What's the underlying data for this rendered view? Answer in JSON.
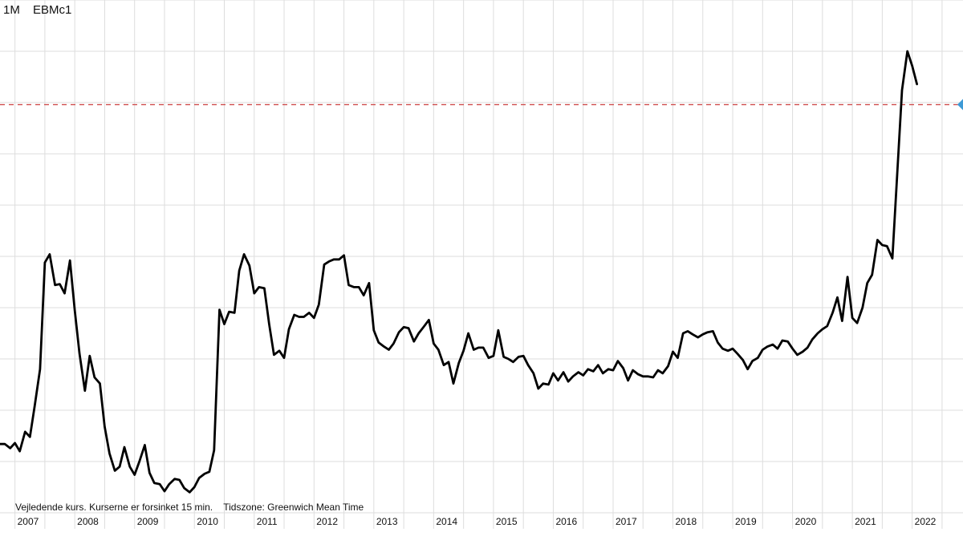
{
  "header": {
    "interval": "1M",
    "symbol": "EBMc1"
  },
  "footnote": "Vejledende kurs. Kurserne er forsinket 15 min.    Tidszone: Greenwich Mean Time",
  "colors": {
    "line": "#000000",
    "grid": "#dddddd",
    "reference_line": "#d05050",
    "marker": "#3d9ad6",
    "text": "#111111"
  },
  "chart_data": {
    "type": "line",
    "title": "",
    "xlabel": "",
    "ylabel": "",
    "x_tick_labels": [
      "2007",
      "2008",
      "2009",
      "2010",
      "2011",
      "2012",
      "2013",
      "2014",
      "2015",
      "2016",
      "2017",
      "2018",
      "2019",
      "2020",
      "2021",
      "2022"
    ],
    "y_tick_labels": [],
    "grid": true,
    "reference_line": {
      "style": "dashed",
      "value": 39.8
    },
    "right_marker": "triangle",
    "xlim": [
      2006.75,
      2022.85
    ],
    "ylim": [
      0,
      50
    ],
    "series": [
      {
        "values": [
          [
            2006.75,
            6.7
          ],
          [
            2006.83,
            6.7
          ],
          [
            2006.92,
            6.3
          ],
          [
            2007.0,
            6.8
          ],
          [
            2007.08,
            6.0
          ],
          [
            2007.17,
            7.9
          ],
          [
            2007.25,
            7.4
          ],
          [
            2007.33,
            10.4
          ],
          [
            2007.42,
            14.0
          ],
          [
            2007.5,
            24.4
          ],
          [
            2007.58,
            25.2
          ],
          [
            2007.67,
            22.2
          ],
          [
            2007.75,
            22.3
          ],
          [
            2007.83,
            21.4
          ],
          [
            2007.92,
            24.6
          ],
          [
            2008.0,
            19.7
          ],
          [
            2008.08,
            15.5
          ],
          [
            2008.17,
            11.9
          ],
          [
            2008.25,
            15.3
          ],
          [
            2008.33,
            13.2
          ],
          [
            2008.42,
            12.6
          ],
          [
            2008.5,
            8.4
          ],
          [
            2008.58,
            5.8
          ],
          [
            2008.67,
            4.1
          ],
          [
            2008.75,
            4.5
          ],
          [
            2008.83,
            6.4
          ],
          [
            2008.92,
            4.5
          ],
          [
            2009.0,
            3.7
          ],
          [
            2009.08,
            5.0
          ],
          [
            2009.17,
            6.6
          ],
          [
            2009.25,
            3.9
          ],
          [
            2009.33,
            2.9
          ],
          [
            2009.42,
            2.8
          ],
          [
            2009.5,
            2.1
          ],
          [
            2009.58,
            2.8
          ],
          [
            2009.67,
            3.3
          ],
          [
            2009.75,
            3.2
          ],
          [
            2009.83,
            2.4
          ],
          [
            2009.92,
            2.0
          ],
          [
            2010.0,
            2.5
          ],
          [
            2010.08,
            3.4
          ],
          [
            2010.17,
            3.8
          ],
          [
            2010.25,
            4.0
          ],
          [
            2010.33,
            6.1
          ],
          [
            2010.42,
            19.8
          ],
          [
            2010.5,
            18.4
          ],
          [
            2010.58,
            19.6
          ],
          [
            2010.67,
            19.5
          ],
          [
            2010.75,
            23.6
          ],
          [
            2010.83,
            25.2
          ],
          [
            2010.92,
            24.1
          ],
          [
            2011.0,
            21.4
          ],
          [
            2011.08,
            22.0
          ],
          [
            2011.17,
            21.9
          ],
          [
            2011.25,
            18.4
          ],
          [
            2011.33,
            15.4
          ],
          [
            2011.42,
            15.8
          ],
          [
            2011.5,
            15.1
          ],
          [
            2011.58,
            17.9
          ],
          [
            2011.67,
            19.3
          ],
          [
            2011.75,
            19.1
          ],
          [
            2011.83,
            19.1
          ],
          [
            2011.92,
            19.5
          ],
          [
            2012.0,
            19.0
          ],
          [
            2012.08,
            20.3
          ],
          [
            2012.17,
            24.2
          ],
          [
            2012.25,
            24.5
          ],
          [
            2012.33,
            24.7
          ],
          [
            2012.42,
            24.7
          ],
          [
            2012.5,
            25.1
          ],
          [
            2012.58,
            22.2
          ],
          [
            2012.67,
            22.0
          ],
          [
            2012.75,
            22.0
          ],
          [
            2012.83,
            21.2
          ],
          [
            2012.92,
            22.4
          ],
          [
            2013.0,
            17.8
          ],
          [
            2013.08,
            16.6
          ],
          [
            2013.17,
            16.2
          ],
          [
            2013.25,
            15.9
          ],
          [
            2013.33,
            16.5
          ],
          [
            2013.42,
            17.6
          ],
          [
            2013.5,
            18.1
          ],
          [
            2013.58,
            18.0
          ],
          [
            2013.67,
            16.7
          ],
          [
            2013.75,
            17.5
          ],
          [
            2013.83,
            18.1
          ],
          [
            2013.92,
            18.8
          ],
          [
            2014.0,
            16.5
          ],
          [
            2014.08,
            15.9
          ],
          [
            2014.17,
            14.4
          ],
          [
            2014.25,
            14.7
          ],
          [
            2014.33,
            12.6
          ],
          [
            2014.42,
            14.6
          ],
          [
            2014.5,
            15.8
          ],
          [
            2014.58,
            17.5
          ],
          [
            2014.67,
            15.9
          ],
          [
            2014.75,
            16.1
          ],
          [
            2014.83,
            16.1
          ],
          [
            2014.92,
            15.1
          ],
          [
            2015.0,
            15.3
          ],
          [
            2015.08,
            17.8
          ],
          [
            2015.17,
            15.2
          ],
          [
            2015.25,
            15.0
          ],
          [
            2015.33,
            14.7
          ],
          [
            2015.42,
            15.2
          ],
          [
            2015.5,
            15.3
          ],
          [
            2015.58,
            14.4
          ],
          [
            2015.67,
            13.6
          ],
          [
            2015.75,
            12.1
          ],
          [
            2015.83,
            12.6
          ],
          [
            2015.92,
            12.5
          ],
          [
            2016.0,
            13.6
          ],
          [
            2016.08,
            12.9
          ],
          [
            2016.17,
            13.7
          ],
          [
            2016.25,
            12.8
          ],
          [
            2016.33,
            13.3
          ],
          [
            2016.42,
            13.7
          ],
          [
            2016.5,
            13.4
          ],
          [
            2016.58,
            14.0
          ],
          [
            2016.67,
            13.8
          ],
          [
            2016.75,
            14.4
          ],
          [
            2016.83,
            13.6
          ],
          [
            2016.92,
            14.0
          ],
          [
            2017.0,
            13.9
          ],
          [
            2017.08,
            14.8
          ],
          [
            2017.17,
            14.1
          ],
          [
            2017.25,
            12.9
          ],
          [
            2017.33,
            13.9
          ],
          [
            2017.42,
            13.5
          ],
          [
            2017.5,
            13.3
          ],
          [
            2017.58,
            13.3
          ],
          [
            2017.67,
            13.2
          ],
          [
            2017.75,
            13.9
          ],
          [
            2017.83,
            13.6
          ],
          [
            2017.92,
            14.3
          ],
          [
            2018.0,
            15.7
          ],
          [
            2018.08,
            15.1
          ],
          [
            2018.17,
            17.5
          ],
          [
            2018.25,
            17.7
          ],
          [
            2018.33,
            17.4
          ],
          [
            2018.42,
            17.1
          ],
          [
            2018.5,
            17.4
          ],
          [
            2018.58,
            17.6
          ],
          [
            2018.67,
            17.7
          ],
          [
            2018.75,
            16.6
          ],
          [
            2018.83,
            16.0
          ],
          [
            2018.92,
            15.8
          ],
          [
            2019.0,
            16.0
          ],
          [
            2019.08,
            15.5
          ],
          [
            2019.17,
            14.9
          ],
          [
            2019.25,
            14.0
          ],
          [
            2019.33,
            14.8
          ],
          [
            2019.42,
            15.1
          ],
          [
            2019.5,
            15.9
          ],
          [
            2019.58,
            16.2
          ],
          [
            2019.67,
            16.4
          ],
          [
            2019.75,
            16.0
          ],
          [
            2019.83,
            16.8
          ],
          [
            2019.92,
            16.7
          ],
          [
            2020.0,
            16.0
          ],
          [
            2020.08,
            15.4
          ],
          [
            2020.17,
            15.7
          ],
          [
            2020.25,
            16.1
          ],
          [
            2020.33,
            16.9
          ],
          [
            2020.42,
            17.5
          ],
          [
            2020.5,
            17.9
          ],
          [
            2020.58,
            18.2
          ],
          [
            2020.67,
            19.5
          ],
          [
            2020.75,
            21.0
          ],
          [
            2020.83,
            18.7
          ],
          [
            2020.92,
            23.0
          ],
          [
            2021.0,
            19.0
          ],
          [
            2021.08,
            18.5
          ],
          [
            2021.17,
            20.0
          ],
          [
            2021.25,
            22.4
          ],
          [
            2021.33,
            23.2
          ],
          [
            2021.42,
            26.6
          ],
          [
            2021.5,
            26.1
          ],
          [
            2021.58,
            26.0
          ],
          [
            2021.67,
            24.8
          ],
          [
            2021.75,
            33.0
          ],
          [
            2021.83,
            41.2
          ],
          [
            2021.92,
            45.0
          ],
          [
            2022.0,
            43.6
          ],
          [
            2022.08,
            41.8
          ]
        ]
      }
    ]
  }
}
